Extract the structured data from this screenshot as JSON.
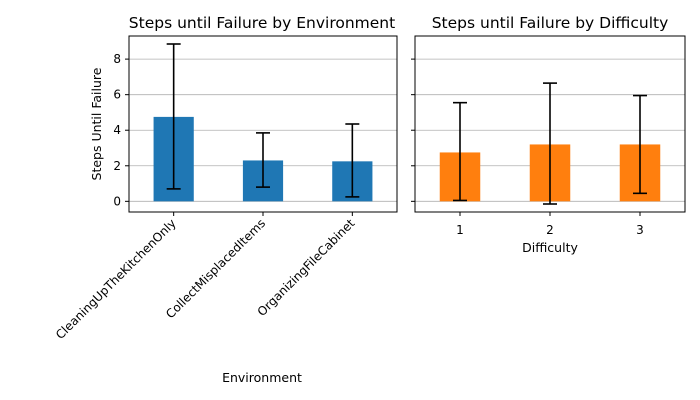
{
  "chart_data": [
    {
      "type": "bar",
      "title": "Steps until Failure by Environment",
      "xlabel": "Environment",
      "ylabel": "Steps Until Failure",
      "ylim": [
        -0.6,
        9.3
      ],
      "yticks": [
        0,
        2,
        4,
        6,
        8
      ],
      "grid": "y",
      "color": "#1f77b4",
      "categories": [
        "CleaningUpTheKitchenOnly",
        "CollectMisplacedItems",
        "OrganizingFileCabinet"
      ],
      "values": [
        4.75,
        2.3,
        2.25
      ],
      "error_low": [
        0.7,
        0.8,
        0.25
      ],
      "error_high": [
        8.85,
        3.85,
        4.35
      ]
    },
    {
      "type": "bar",
      "title": "Steps until Failure by Difficulty",
      "xlabel": "Difficulty",
      "ylabel": "",
      "ylim": [
        -0.6,
        9.3
      ],
      "yticks": [
        0,
        2,
        4,
        6,
        8
      ],
      "grid": "y",
      "color": "#ff7f0e",
      "categories": [
        "1",
        "2",
        "3"
      ],
      "values": [
        2.75,
        3.2,
        3.2
      ],
      "error_low": [
        0.05,
        -0.15,
        0.45
      ],
      "error_high": [
        5.55,
        6.65,
        5.95
      ]
    }
  ]
}
